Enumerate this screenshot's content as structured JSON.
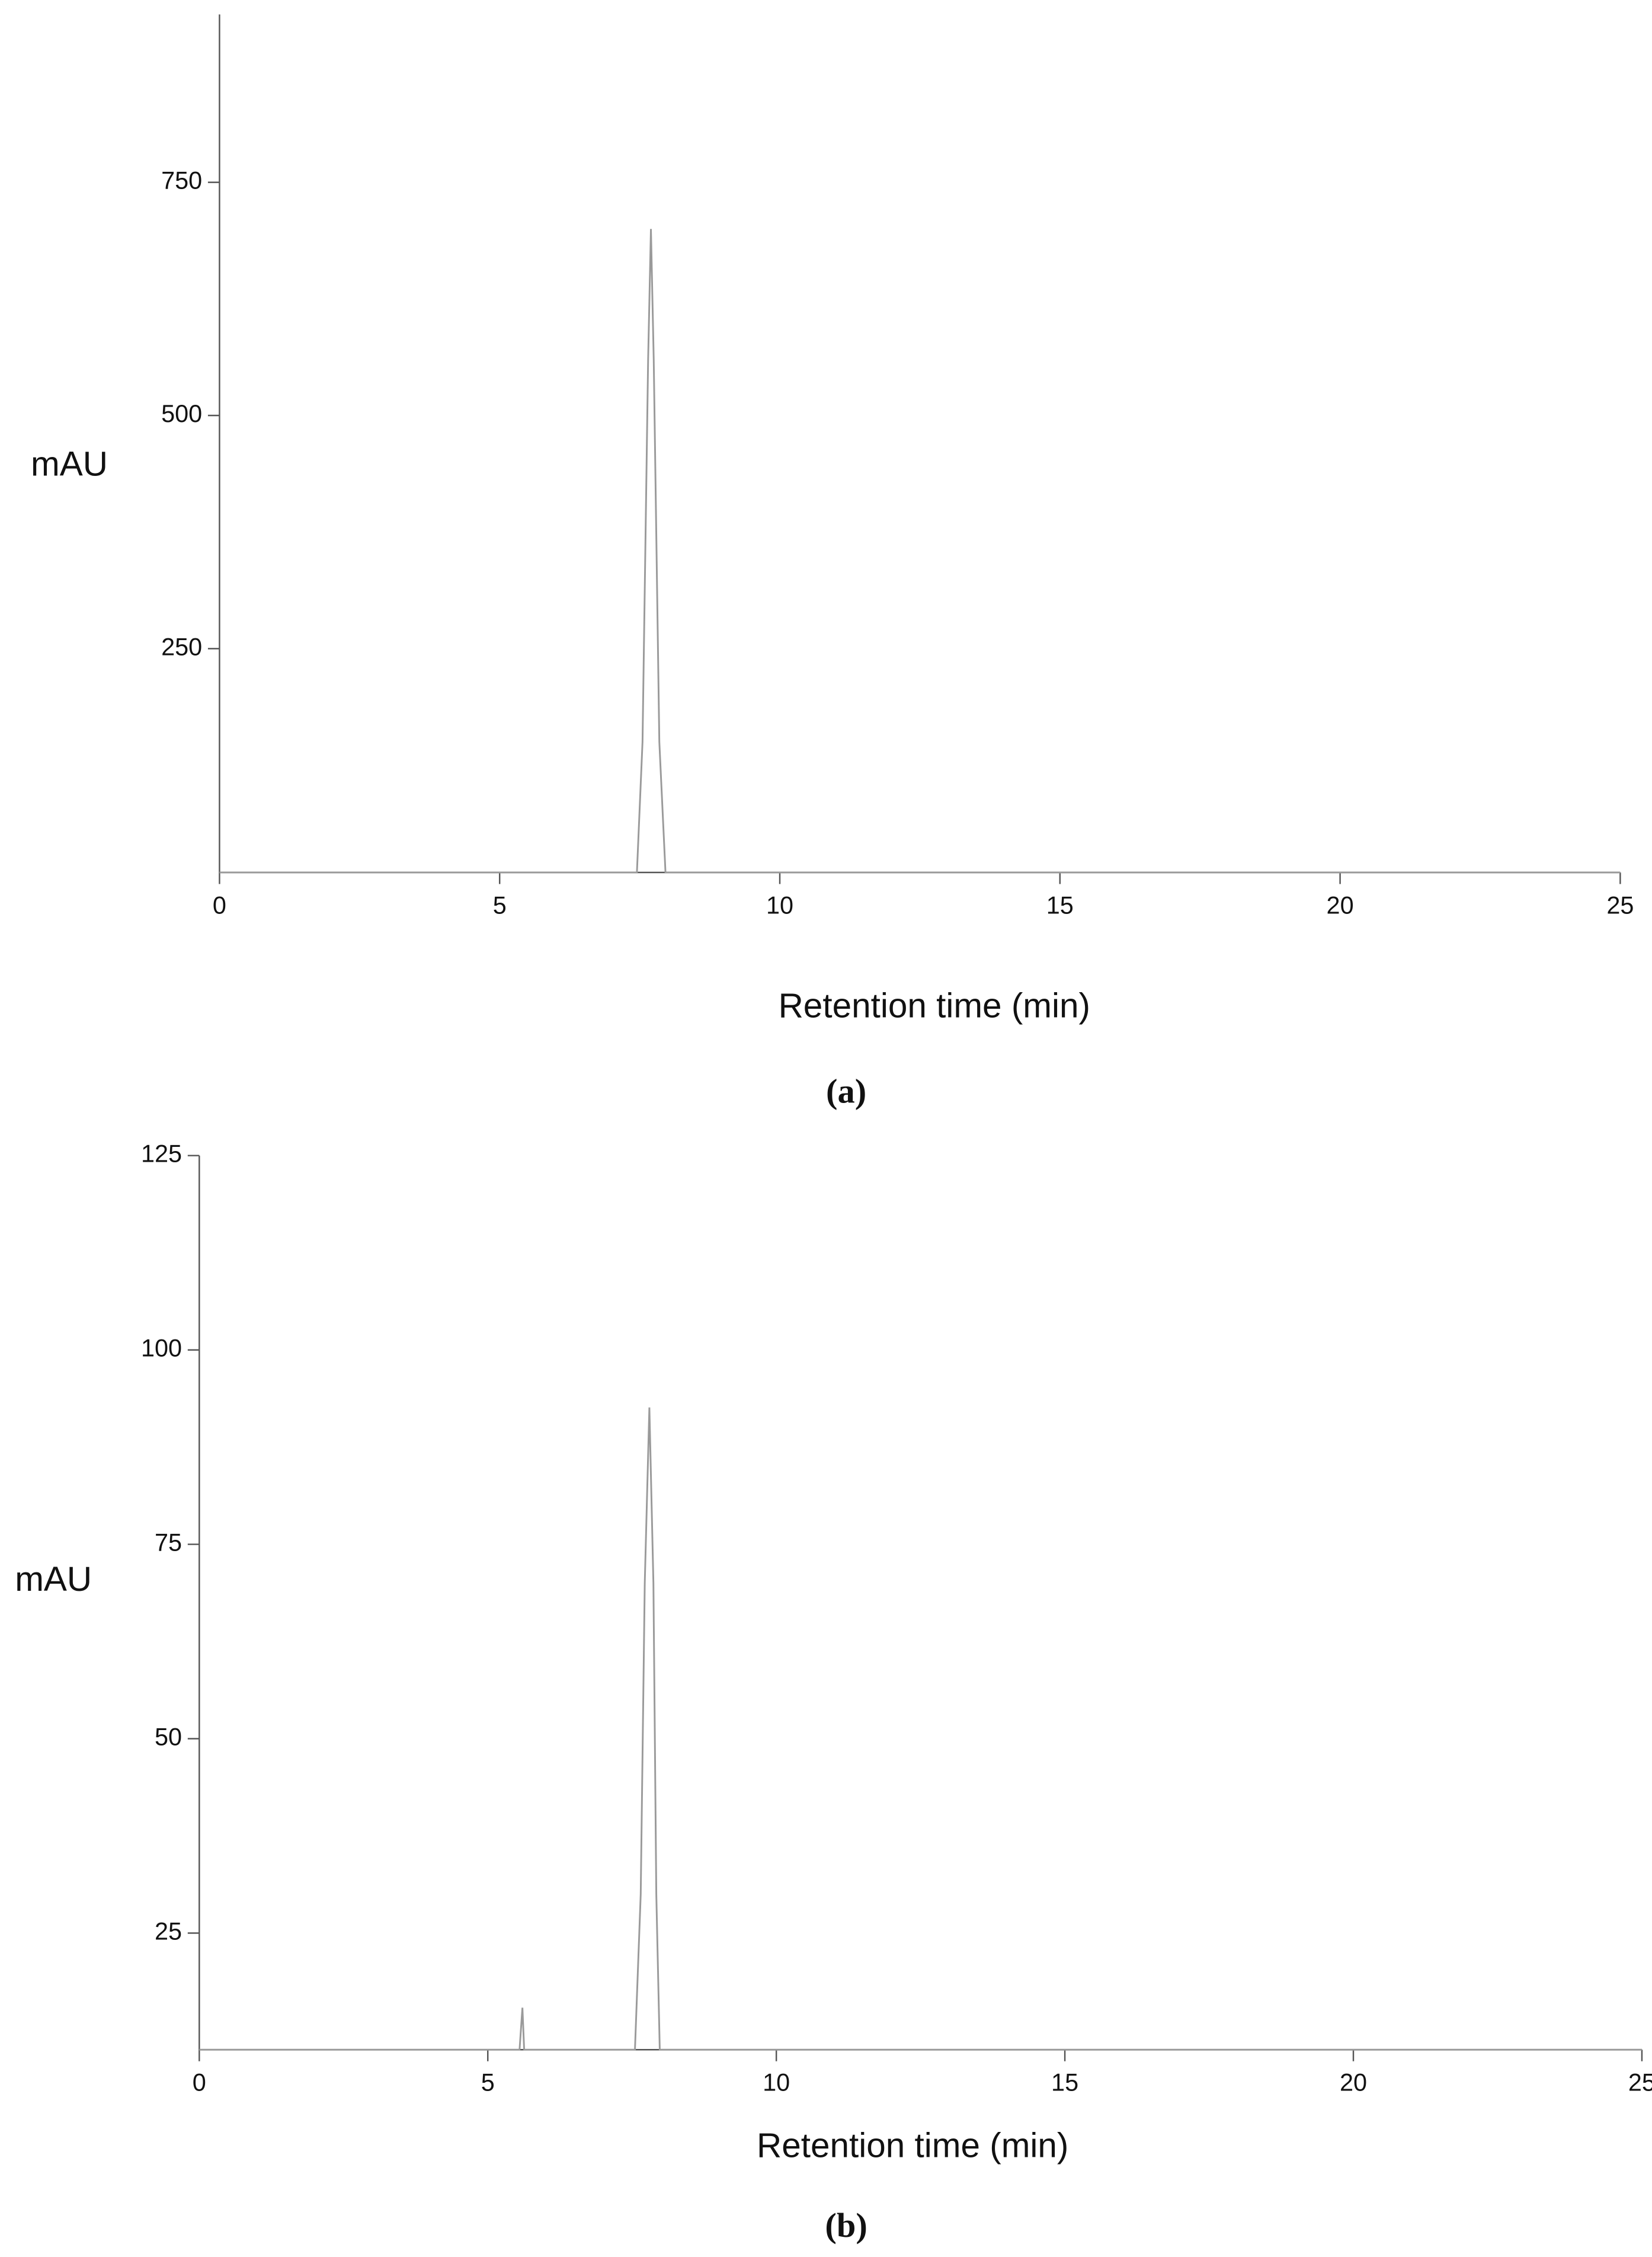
{
  "chart_data": [
    {
      "type": "line",
      "caption": "(a)",
      "ylabel": "mAU",
      "xlabel": "Retention time (min)",
      "x": [
        0,
        7.45,
        7.55,
        7.65,
        7.7,
        7.75,
        7.85,
        7.96,
        25
      ],
      "series": [
        {
          "color": "#9a9a9a",
          "values": [
            10,
            10,
            150,
            560,
            700,
            560,
            150,
            10,
            10
          ]
        }
      ],
      "xlim": [
        0,
        25
      ],
      "xticks": [
        0,
        5,
        10,
        15,
        20,
        25
      ],
      "ylim": [
        10,
        930
      ],
      "yticks": [
        250,
        500,
        750
      ],
      "grid": false
    },
    {
      "type": "line",
      "caption": "(b)",
      "ylabel": "mAU",
      "xlabel": "Retention time (min)",
      "x": [
        0,
        5.55,
        5.6,
        5.63,
        7.55,
        7.65,
        7.72,
        7.8,
        7.87,
        7.92,
        7.98,
        25
      ],
      "series": [
        {
          "color": "#9a9a9a",
          "values": [
            10,
            10,
            15.4,
            10,
            10,
            30,
            70,
            92.6,
            70,
            30,
            10,
            10
          ]
        }
      ],
      "xlim": [
        0,
        25
      ],
      "xticks": [
        0,
        5,
        10,
        15,
        20,
        25
      ],
      "ylim": [
        10,
        125
      ],
      "yticks": [
        25,
        50,
        75,
        100,
        125
      ],
      "grid": false
    }
  ]
}
